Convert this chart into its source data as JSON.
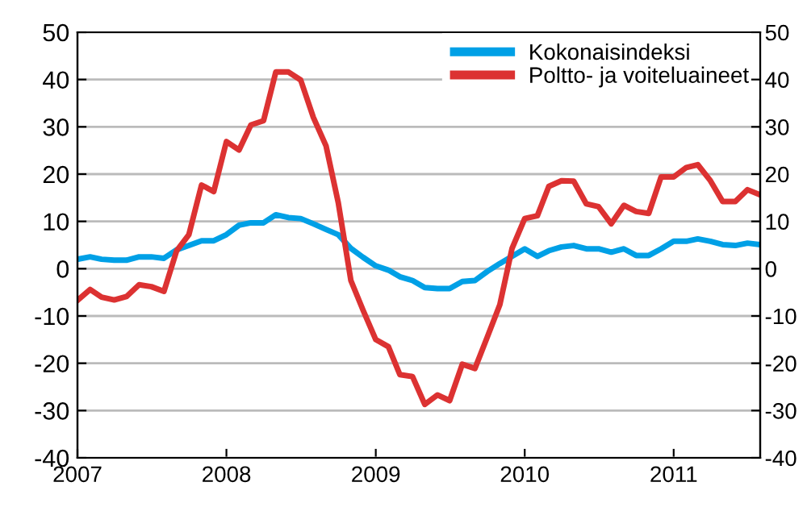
{
  "chart_data": {
    "type": "line",
    "x": [
      "2007-01",
      "2007-02",
      "2007-03",
      "2007-04",
      "2007-05",
      "2007-06",
      "2007-07",
      "2007-08",
      "2007-09",
      "2007-10",
      "2007-11",
      "2007-12",
      "2008-01",
      "2008-02",
      "2008-03",
      "2008-04",
      "2008-05",
      "2008-06",
      "2008-07",
      "2008-08",
      "2008-09",
      "2008-10",
      "2008-11",
      "2008-12",
      "2009-01",
      "2009-02",
      "2009-03",
      "2009-04",
      "2009-05",
      "2009-06",
      "2009-07",
      "2009-08",
      "2009-09",
      "2009-10",
      "2009-11",
      "2009-12",
      "2010-01",
      "2010-02",
      "2010-03",
      "2010-04",
      "2010-05",
      "2010-06",
      "2010-07",
      "2010-08",
      "2010-09",
      "2010-10",
      "2010-11",
      "2010-12",
      "2011-01",
      "2011-02",
      "2011-03",
      "2011-04",
      "2011-05",
      "2011-06",
      "2011-07",
      "2011-08"
    ],
    "series": [
      {
        "name": "Kokonaisindeksi",
        "color": "#00a0e6",
        "values": [
          2.0,
          2.5,
          2.0,
          1.8,
          1.8,
          2.5,
          2.5,
          2.2,
          4.0,
          4.9,
          5.9,
          5.9,
          7.2,
          9.2,
          9.7,
          9.7,
          11.4,
          10.8,
          10.6,
          9.5,
          8.3,
          7.2,
          4.3,
          2.4,
          0.6,
          -0.3,
          -1.7,
          -2.5,
          -4.0,
          -4.2,
          -4.2,
          -2.7,
          -2.5,
          -0.6,
          1.1,
          2.6,
          4.2,
          2.6,
          3.8,
          4.6,
          4.9,
          4.2,
          4.2,
          3.5,
          4.2,
          2.8,
          2.8,
          4.2,
          5.8,
          5.8,
          6.3,
          5.8,
          5.1,
          4.9,
          5.4,
          5.1
        ]
      },
      {
        "name": "Poltto- ja voiteluaineet",
        "color": "#dc3232",
        "values": [
          -6.7,
          -4.4,
          -6.0,
          -6.6,
          -5.9,
          -3.4,
          -3.8,
          -4.8,
          3.8,
          7.2,
          17.7,
          16.3,
          26.9,
          25.1,
          30.4,
          31.3,
          41.6,
          41.6,
          39.9,
          32.0,
          26.0,
          14.0,
          -2.5,
          -8.8,
          -15.0,
          -16.5,
          -22.4,
          -22.8,
          -28.7,
          -26.7,
          -27.9,
          -20.2,
          -21.1,
          -14.5,
          -7.6,
          4.3,
          10.6,
          11.2,
          17.4,
          18.6,
          18.5,
          13.7,
          13.1,
          9.5,
          13.4,
          12.1,
          11.7,
          19.4,
          19.4,
          21.4,
          22.0,
          18.6,
          14.2,
          14.2,
          16.7,
          15.6
        ]
      }
    ],
    "xlim": [
      "2007-01",
      "2011-08"
    ],
    "xticks": [
      {
        "value": "2007-01",
        "label": "2007"
      },
      {
        "value": "2008-01",
        "label": "2008"
      },
      {
        "value": "2009-01",
        "label": "2009"
      },
      {
        "value": "2010-01",
        "label": "2010"
      },
      {
        "value": "2011-01",
        "label": "2011"
      }
    ],
    "ylim": [
      -40,
      50
    ],
    "yticks": [
      -40,
      -30,
      -20,
      -10,
      0,
      10,
      20,
      30,
      40,
      50
    ],
    "y2lim": [
      -40,
      50
    ],
    "y2ticks": [
      -40,
      -30,
      -20,
      -10,
      0,
      10,
      20,
      30,
      40,
      50
    ],
    "grid": "y",
    "legend": "top right",
    "marker": "none",
    "line_style": "solid"
  }
}
